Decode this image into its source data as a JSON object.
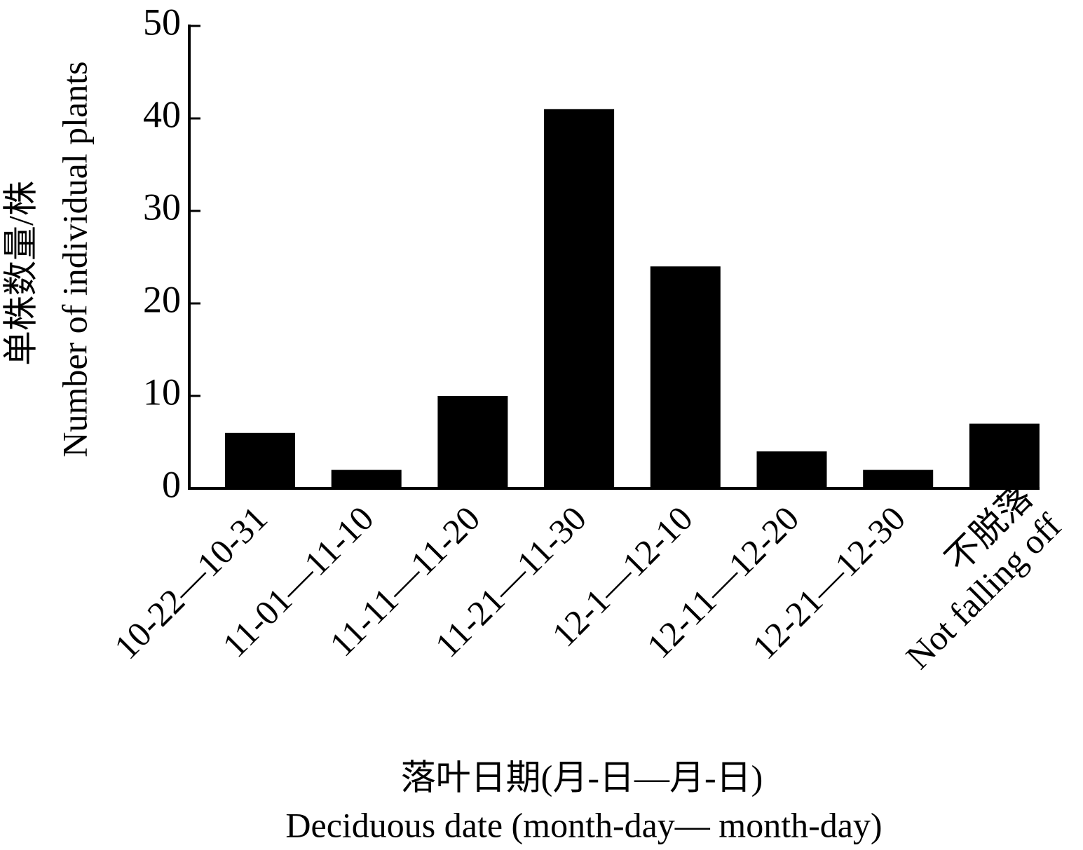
{
  "chart_data": {
    "type": "bar",
    "y_label": [
      "单株数量/株",
      "Number of individual plants"
    ],
    "x_label": [
      "落叶日期(月-日—月-日)",
      "Deciduous date (month-day— month-day)"
    ],
    "categories": [
      "10-22—10-31",
      "11-01—11-10",
      "11-11—11-20",
      "11-21—11-30",
      "12-1—12-10",
      "12-11—12-20",
      "12-21—12-30",
      "不脱落\nNot falling off"
    ],
    "values": [
      6,
      2,
      10,
      41,
      24,
      4,
      2,
      7
    ],
    "color": "#000000",
    "ylim": [
      0,
      50
    ],
    "yticks": [
      0,
      10,
      20,
      30,
      40,
      50
    ],
    "grid": false
  }
}
